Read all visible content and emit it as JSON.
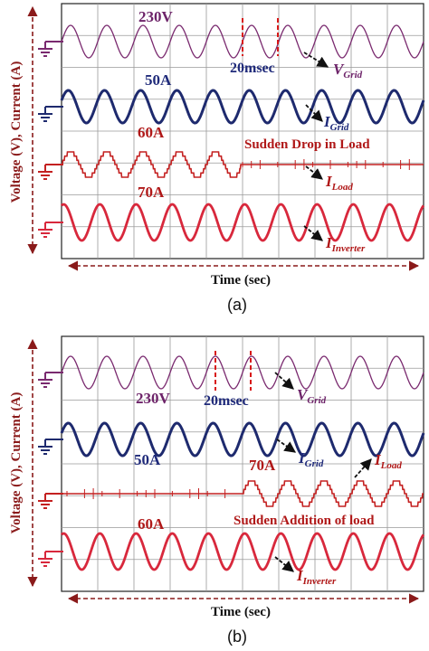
{
  "colors": {
    "grid_voltage": "#7a2a6f",
    "grid_current": "#1e2a6e",
    "load_current": "#c42020",
    "inverter_current": "#d8283c",
    "label_purple": "#6d2369",
    "label_navy": "#1f2a7a",
    "label_red": "#b01818",
    "axis_red": "#8a1a1a",
    "gridline": "#9a9a9a"
  },
  "chart_data": [
    {
      "panel": "a",
      "caption": "(a)",
      "type": "line",
      "xlabel": "Time (sec)",
      "ylabel": "Voltage (V), Current (A)",
      "grid": true,
      "event": "Sudden Drop in Load",
      "period_marker": "20msec",
      "cycles": 10,
      "event_fraction": 0.495,
      "series": [
        {
          "name": "V",
          "subscript": "Grid",
          "amplitude_label": "230V",
          "waveform": "sine",
          "shape": "constant"
        },
        {
          "name": "I",
          "subscript": "Grid",
          "amplitude_label": "50A",
          "waveform": "sine",
          "shape": "constant"
        },
        {
          "name": "I",
          "subscript": "Load",
          "amplitude_label": "60A",
          "waveform": "stepped",
          "shape": "drop_to_zero"
        },
        {
          "name": "I",
          "subscript": "Inverter",
          "amplitude_label": "70A",
          "waveform": "sine",
          "shape": "constant"
        }
      ]
    },
    {
      "panel": "b",
      "caption": "(b)",
      "type": "line",
      "xlabel": "Time (sec)",
      "ylabel": "Voltage (V), Current (A)",
      "grid": true,
      "event": "Sudden Addition of load",
      "period_marker": "20msec",
      "cycles": 10,
      "event_fraction": 0.5,
      "series": [
        {
          "name": "V",
          "subscript": "Grid",
          "amplitude_label": "230V",
          "waveform": "sine",
          "shape": "constant"
        },
        {
          "name": "I",
          "subscript": "Grid",
          "amplitude_label": "50A",
          "waveform": "sine",
          "shape": "constant"
        },
        {
          "name": "I",
          "subscript": "Load",
          "amplitude_label": "70A",
          "waveform": "stepped",
          "shape": "rise_from_zero"
        },
        {
          "name": "I",
          "subscript": "Inverter",
          "amplitude_label": "60A",
          "waveform": "sine",
          "shape": "constant"
        }
      ]
    }
  ]
}
